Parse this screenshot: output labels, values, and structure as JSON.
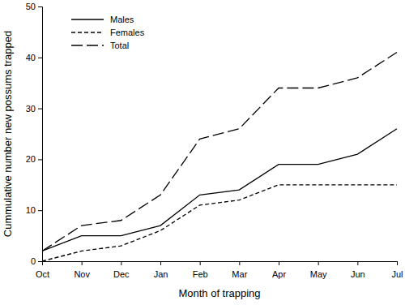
{
  "chart_data": {
    "type": "line",
    "x_label": "Month of trapping",
    "y_label": "Cummulative number new possums trapped",
    "categories": [
      "Oct",
      "Nov",
      "Dec",
      "Jan",
      "Feb",
      "Mar",
      "Apr",
      "May",
      "Jun",
      "Jul"
    ],
    "series": [
      {
        "name": "Males",
        "color": "#000000",
        "line_style": "solid",
        "values": [
          2,
          5,
          5,
          7,
          13,
          14,
          19,
          19,
          21,
          26
        ]
      },
      {
        "name": "Females",
        "color": "#000000",
        "line_style": "dashed",
        "values": [
          0,
          2,
          3,
          6,
          11,
          12,
          15,
          15,
          15,
          15
        ]
      },
      {
        "name": "Total",
        "color": "#000000",
        "line_style": "long-dash",
        "values": [
          2,
          7,
          8,
          13,
          24,
          26,
          34,
          34,
          36,
          41
        ]
      }
    ],
    "ylim": [
      0,
      50
    ],
    "yticks": [
      0,
      10,
      20,
      30,
      40,
      50
    ],
    "grid": false,
    "legend": "upper left"
  }
}
